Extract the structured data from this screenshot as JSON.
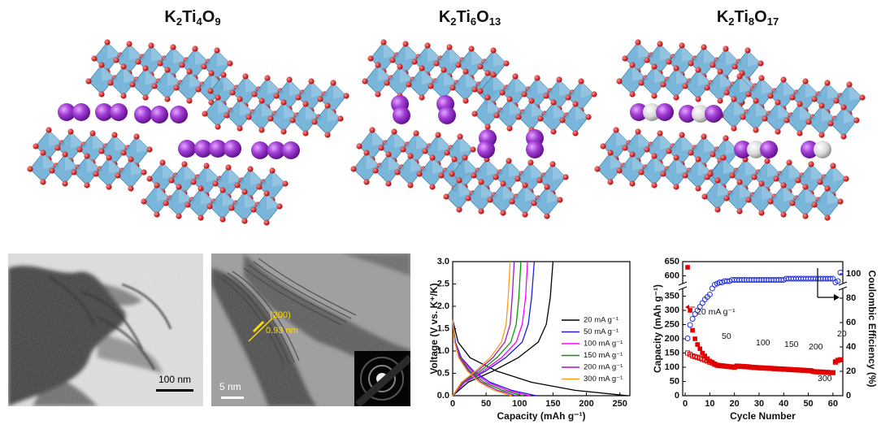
{
  "structures": [
    {
      "formula": [
        "K",
        "2",
        "Ti",
        "4",
        "O",
        "9"
      ]
    },
    {
      "formula": [
        "K",
        "2",
        "Ti",
        "6",
        "O",
        "13"
      ]
    },
    {
      "formula": [
        "K",
        "2",
        "Ti",
        "8",
        "O",
        "17"
      ]
    }
  ],
  "tem": {
    "scale_bar_1": "100 nm",
    "plane": "(200)",
    "spacing": "0.93 nm",
    "scale_bar_2": "5 nm"
  },
  "chart_data": [
    {
      "type": "line",
      "xlabel": "Capacity (mAh g⁻¹)",
      "ylabel": "Voltage (V vs. K⁺/K)",
      "xlim": [
        0,
        265
      ],
      "ylim": [
        0,
        3.0
      ],
      "xticks": [
        0,
        50,
        100,
        150,
        200,
        250
      ],
      "yticks": [
        {
          "value": 0,
          "label": "0.0"
        },
        0.5,
        {
          "value": 1,
          "label": "1.0"
        },
        1.5,
        {
          "value": 2,
          "label": "2.0"
        },
        2.5,
        {
          "value": 3,
          "label": "3.0"
        }
      ],
      "legend": "lower right",
      "series": [
        {
          "name": "20 mA g⁻¹",
          "color": "#000000",
          "x": [
            0,
            8,
            26,
            66,
            118,
            183,
            262,
            null,
            0,
            23,
            60,
            98,
            128,
            140,
            146,
            150
          ],
          "values": [
            1.7,
            1.2,
            0.85,
            0.55,
            0.3,
            0.12,
            0,
            null,
            0,
            0.3,
            0.55,
            0.85,
            1.2,
            1.6,
            2.2,
            3.0
          ]
        },
        {
          "name": "50 mA g⁻¹",
          "color": "#1f1fd6",
          "x": [
            0,
            4,
            13,
            31,
            56,
            88,
            125,
            null,
            0,
            18,
            49,
            79,
            104,
            113,
            118,
            122
          ],
          "values": [
            1.7,
            1.2,
            0.85,
            0.55,
            0.3,
            0.12,
            0,
            null,
            0,
            0.3,
            0.55,
            0.85,
            1.2,
            1.6,
            2.2,
            3.0
          ]
        },
        {
          "name": "100 mA g⁻¹",
          "color": "#ff00ff",
          "x": [
            0,
            3,
            12,
            29,
            52,
            81,
            115,
            null,
            0,
            17,
            45,
            73,
            95,
            104,
            109,
            112
          ],
          "values": [
            1.7,
            1.2,
            0.85,
            0.55,
            0.3,
            0.12,
            0,
            null,
            0,
            0.3,
            0.55,
            0.85,
            1.2,
            1.6,
            2.2,
            3.0
          ]
        },
        {
          "name": "150 mA g⁻¹",
          "color": "#009a00",
          "x": [
            0,
            3,
            11,
            26,
            47,
            74,
            105,
            null,
            0,
            15,
            41,
            66,
            87,
            95,
            99,
            102
          ],
          "values": [
            1.7,
            1.2,
            0.85,
            0.55,
            0.3,
            0.12,
            0,
            null,
            0,
            0.3,
            0.55,
            0.85,
            1.2,
            1.6,
            2.2,
            3.0
          ]
        },
        {
          "name": "200 mA g⁻¹",
          "color": "#9a19c8",
          "x": [
            0,
            3,
            10,
            24,
            43,
            67,
            95,
            null,
            0,
            14,
            37,
            60,
            78,
            86,
            89,
            92
          ],
          "values": [
            1.7,
            1.2,
            0.85,
            0.55,
            0.3,
            0.12,
            0,
            null,
            0,
            0.3,
            0.55,
            0.85,
            1.2,
            1.6,
            2.2,
            3.0
          ]
        },
        {
          "name": "300 mA g⁻¹",
          "color": "#ff9a1a",
          "x": [
            0,
            3,
            9,
            22,
            40,
            62,
            88,
            null,
            0,
            13,
            34,
            56,
            73,
            80,
            83,
            86
          ],
          "values": [
            1.7,
            1.2,
            0.85,
            0.55,
            0.3,
            0.12,
            0,
            null,
            0,
            0.3,
            0.55,
            0.85,
            1.2,
            1.6,
            2.2,
            3.0
          ]
        }
      ]
    },
    {
      "type": "scatter",
      "xlabel": "Cycle Number",
      "ylabel": "Capacity (mAh g⁻¹)",
      "y2label": "Coulombic Efficiency (%)",
      "xlim": [
        -1,
        64
      ],
      "ylim": [
        0,
        650
      ],
      "y2lim": [
        0,
        110
      ],
      "axis_break": [
        350,
        600
      ],
      "xticks": [
        0,
        10,
        20,
        30,
        40,
        50,
        60
      ],
      "yticks": [
        0,
        50,
        100,
        150,
        200,
        250,
        300,
        350,
        600,
        650
      ],
      "y2ticks": [
        0,
        20,
        40,
        60,
        80,
        100
      ],
      "x": [
        1,
        2,
        3,
        4,
        5,
        6,
        7,
        8,
        9,
        10,
        11,
        12,
        13,
        14,
        15,
        16,
        17,
        18,
        19,
        20,
        21,
        22,
        23,
        24,
        25,
        26,
        27,
        28,
        29,
        30,
        31,
        32,
        33,
        34,
        35,
        36,
        37,
        38,
        39,
        40,
        41,
        42,
        43,
        44,
        45,
        46,
        47,
        48,
        49,
        50,
        51,
        52,
        53,
        54,
        55,
        56,
        57,
        58,
        59,
        60,
        61,
        62,
        63
      ],
      "series": [
        {
          "color": "#e00000",
          "marker": "square-filled",
          "values": [
            630,
            300,
            230,
            200,
            180,
            165,
            150,
            140,
            130,
            122,
            118,
            112,
            108,
            106,
            105,
            104,
            103,
            102,
            101,
            100,
            105,
            104,
            103,
            103,
            102,
            101,
            100,
            100,
            99,
            99,
            98,
            98,
            97,
            97,
            96,
            96,
            95,
            95,
            94,
            94,
            93,
            93,
            92,
            92,
            91,
            91,
            90,
            90,
            89,
            89,
            88,
            85,
            84,
            84,
            83,
            83,
            82,
            82,
            81,
            81,
            120,
            125,
            127
          ]
        },
        {
          "color": "#e00000",
          "marker": "square-open",
          "values": [
            150,
            145,
            140,
            137,
            135,
            132,
            128,
            125,
            122,
            118,
            115,
            110,
            107,
            106,
            105,
            104,
            103,
            102,
            101,
            100,
            104,
            103,
            103,
            102,
            102,
            101,
            100,
            99,
            99,
            98,
            98,
            97,
            97,
            96,
            96,
            95,
            95,
            94,
            94,
            93,
            93,
            92,
            92,
            91,
            91,
            90,
            90,
            89,
            89,
            88,
            88,
            85,
            84,
            84,
            83,
            83,
            82,
            82,
            81,
            81,
            118,
            124,
            126
          ]
        },
        {
          "color": "#2030e0",
          "marker": "circle-open",
          "axis": "y2",
          "values": [
            47,
            58,
            63,
            67,
            70,
            73,
            76,
            79,
            81,
            83,
            88,
            91,
            92,
            93,
            93,
            94,
            94,
            94,
            95,
            95,
            95,
            95,
            95,
            95,
            95,
            95,
            95,
            95,
            95,
            95,
            95,
            95,
            95,
            95,
            95,
            95,
            95,
            95,
            95,
            95,
            96,
            96,
            96,
            96,
            96,
            96,
            96,
            96,
            96,
            96,
            96,
            96,
            96,
            96,
            96,
            96,
            96,
            96,
            96,
            96,
            93,
            94,
            101
          ]
        }
      ],
      "annotations": [
        "20 mA g⁻¹",
        "50",
        "100",
        "150",
        "200",
        "300",
        "20"
      ]
    }
  ]
}
